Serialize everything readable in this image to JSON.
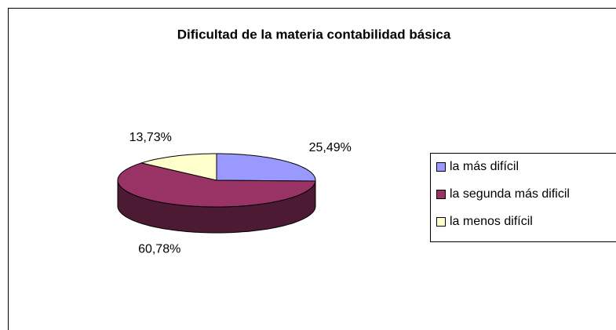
{
  "chart_data": {
    "type": "pie",
    "title": "Dificultad de la materia contabilidad básica",
    "categories": [
      "la más difícil",
      "la segunda más dificil",
      "la menos difícil"
    ],
    "values": [
      25.49,
      60.78,
      13.73
    ],
    "value_labels": [
      "25,49%",
      "60,78%",
      "13,73%"
    ],
    "colors": [
      "#9999ff",
      "#993366",
      "#ffffcc"
    ],
    "legend": "right",
    "three_d": true
  }
}
